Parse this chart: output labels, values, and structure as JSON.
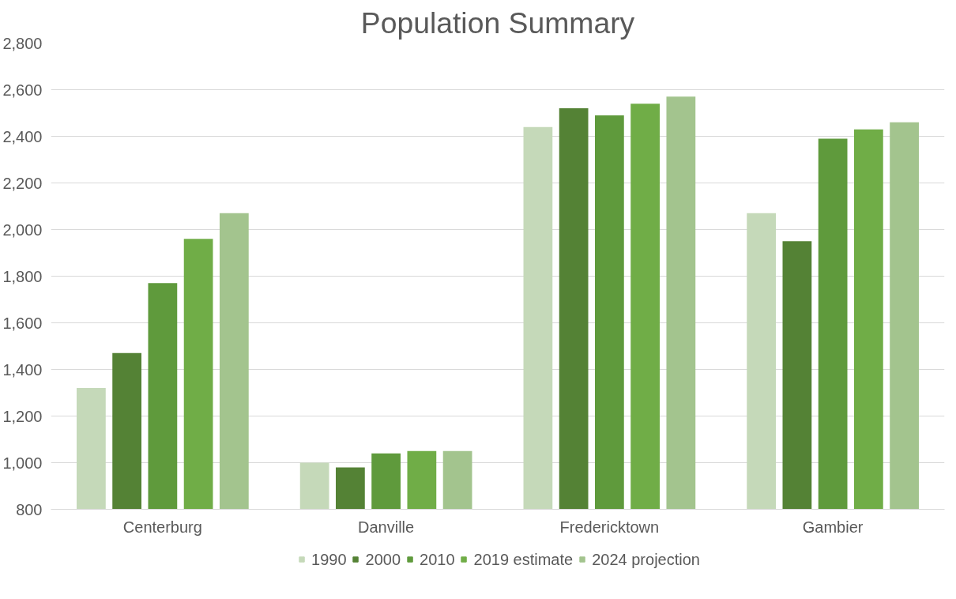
{
  "chart_data": {
    "type": "bar",
    "title": "Population Summary",
    "categories": [
      "Centerburg",
      "Danville",
      "Fredericktown",
      "Gambier"
    ],
    "series": [
      {
        "name": "1990",
        "color": "#c5d9b9",
        "values": [
          1320,
          1000,
          2440,
          2070
        ]
      },
      {
        "name": "2000",
        "color": "#548235",
        "values": [
          1470,
          980,
          2520,
          1950
        ]
      },
      {
        "name": "2010",
        "color": "#5f9a3c",
        "values": [
          1770,
          1040,
          2490,
          2390
        ]
      },
      {
        "name": "2019 estimate",
        "color": "#70ad47",
        "values": [
          1960,
          1050,
          2540,
          2430
        ]
      },
      {
        "name": "2024 projection",
        "color": "#a3c48e",
        "values": [
          2070,
          1050,
          2570,
          2460
        ]
      }
    ],
    "ylim": [
      800,
      2800
    ],
    "yticks": [
      {
        "value": 800,
        "label": "800"
      },
      {
        "value": 1000,
        "label": "1,000"
      },
      {
        "value": 1200,
        "label": "1,200"
      },
      {
        "value": 1400,
        "label": "1,400"
      },
      {
        "value": 1600,
        "label": "1,600"
      },
      {
        "value": 1800,
        "label": "1,800"
      },
      {
        "value": 2000,
        "label": "2,000"
      },
      {
        "value": 2200,
        "label": "2,200"
      },
      {
        "value": 2400,
        "label": "2,400"
      },
      {
        "value": 2600,
        "label": "2,600"
      },
      {
        "value": 2800,
        "label": "2,800"
      }
    ],
    "grid": "y",
    "legend": "bottom"
  }
}
